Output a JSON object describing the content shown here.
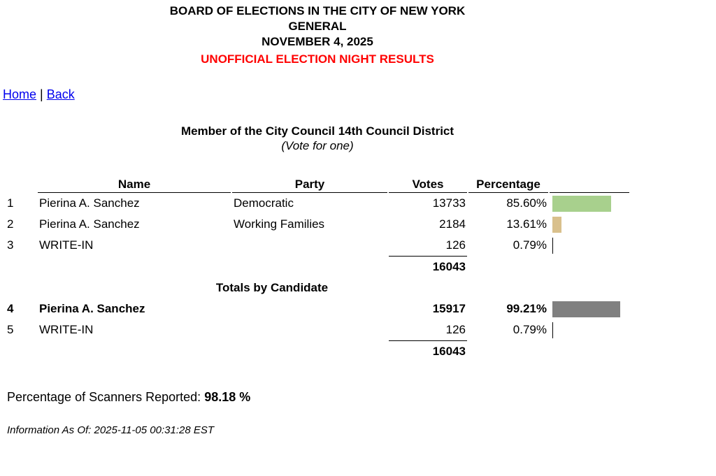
{
  "header": {
    "line1": "BOARD OF ELECTIONS IN THE CITY OF NEW YORK",
    "line2": "GENERAL",
    "line3": "NOVEMBER 4, 2025",
    "line4": "UNOFFICIAL ELECTION NIGHT RESULTS"
  },
  "nav": {
    "home": "Home",
    "separator": "|",
    "back": "Back"
  },
  "contest": {
    "title": "Member of the City Council 14th Council District",
    "subtitle": "(Vote for one)"
  },
  "table": {
    "headers": {
      "name": "Name",
      "party": "Party",
      "votes": "Votes",
      "percentage": "Percentage"
    },
    "rows": [
      {
        "idx": "1",
        "name": "Pierina A. Sanchez",
        "party": "Democratic",
        "votes": "13733",
        "pct": "85.60%",
        "pct_value": 85.6,
        "bar_color": "#a8d08d"
      },
      {
        "idx": "2",
        "name": "Pierina A. Sanchez",
        "party": "Working Families",
        "votes": "2184",
        "pct": "13.61%",
        "pct_value": 13.61,
        "bar_color": "#d9c08c"
      },
      {
        "idx": "3",
        "name": "WRITE-IN",
        "party": "",
        "votes": "126",
        "pct": "0.79%",
        "pct_value": 0.79,
        "bar_color": "#000000"
      }
    ],
    "total1": "16043",
    "section_label": "Totals by Candidate",
    "candidate_rows": [
      {
        "idx": "4",
        "name": "Pierina A. Sanchez",
        "votes": "15917",
        "pct": "99.21%",
        "pct_value": 99.21,
        "bar_color": "#808080"
      },
      {
        "idx": "5",
        "name": "WRITE-IN",
        "votes": "126",
        "pct": "0.79%",
        "pct_value": 0.79,
        "bar_color": "#000000"
      }
    ],
    "total2": "16043"
  },
  "footer": {
    "scanners_label": "Percentage of Scanners Reported:",
    "scanners_value": "98.18 %",
    "info": "Information As Of: 2025-11-05 00:31:28 EST"
  }
}
